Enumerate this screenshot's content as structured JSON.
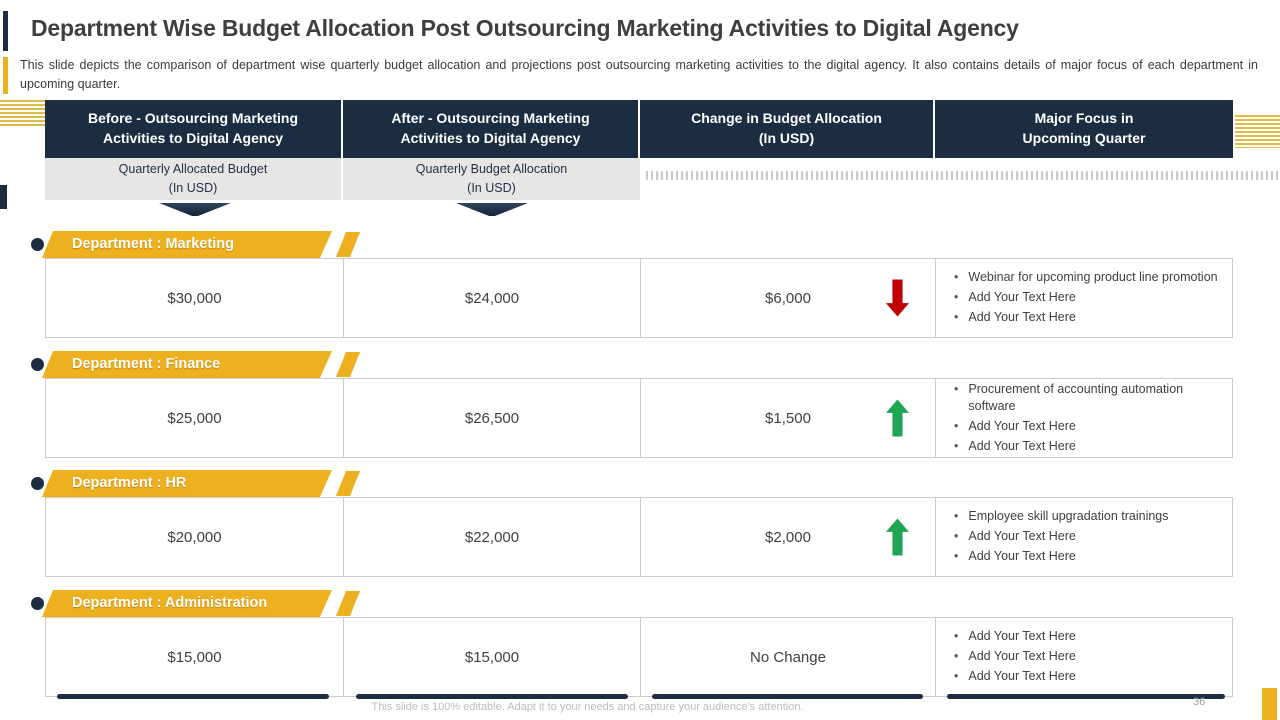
{
  "slide": {
    "title": "Department Wise Budget Allocation Post Outsourcing Marketing Activities to Digital Agency",
    "description": "This slide depicts the comparison of department wise quarterly budget allocation and projections post outsourcing marketing activities to the digital agency. It also contains details of major focus of each department in upcoming quarter.",
    "footer": "This slide is 100% editable.  Adapt it to your needs and capture your audience's attention.",
    "page_number": "36"
  },
  "colors": {
    "navy": "#1c2d42",
    "gold": "#edb01f",
    "red_arrow": "#c00000",
    "green_arrow": "#1fa653",
    "subheader_bg": "#e8e6e4"
  },
  "table": {
    "headers": [
      "Before - Outsourcing Marketing\nActivities to Digital Agency",
      "After - Outsourcing Marketing\nActivities to Digital Agency",
      "Change in Budget Allocation\n(In USD)",
      "Major Focus in\nUpcoming Quarter"
    ],
    "subheaders": [
      "Quarterly Allocated Budget\n(In USD)",
      "Quarterly Budget Allocation\n(In USD)"
    ],
    "rows": [
      {
        "department": "Department : Marketing",
        "before": "$30,000",
        "after": "$24,000",
        "change": "$6,000",
        "trend": "down",
        "focus": [
          "Webinar for upcoming product line promotion",
          "Add Your Text Here",
          "Add Your Text Here"
        ]
      },
      {
        "department": "Department : Finance",
        "before": "$25,000",
        "after": "$26,500",
        "change": "$1,500",
        "trend": "up",
        "focus": [
          "Procurement of accounting automation software",
          "Add Your Text Here",
          "Add Your Text Here"
        ]
      },
      {
        "department": "Department : HR",
        "before": "$20,000",
        "after": "$22,000",
        "change": "$2,000",
        "trend": "up",
        "focus": [
          "Employee skill upgradation trainings",
          "Add Your Text Here",
          "Add Your Text Here"
        ]
      },
      {
        "department": "Department : Administration",
        "before": "$15,000",
        "after": "$15,000",
        "change": "No Change",
        "trend": "none",
        "focus": [
          "Add Your Text Here",
          "Add Your Text Here",
          "Add Your Text Here"
        ]
      }
    ]
  }
}
